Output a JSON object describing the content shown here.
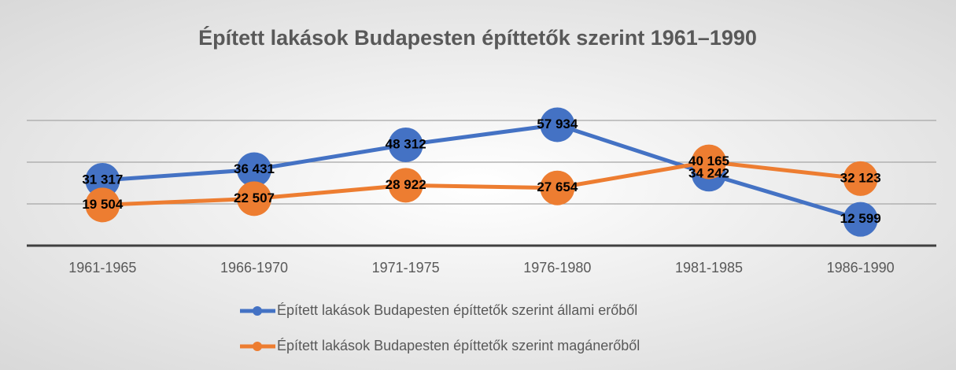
{
  "chart_data": {
    "type": "line",
    "title": "Épített lakások Budapesten építtetők szerint 1961–1990",
    "categories": [
      "1961-1965",
      "1966-1970",
      "1971-1975",
      "1976-1980",
      "1981-1985",
      "1986-1990"
    ],
    "series": [
      {
        "name": "Épített lakások Budapesten építtetők szerint állami erőből",
        "color": "#4472c4",
        "values": [
          31317,
          36431,
          48312,
          57934,
          34242,
          12599
        ],
        "value_labels": [
          "31 317",
          "36 431",
          "48 312",
          "57 934",
          "34 242",
          "12 599"
        ]
      },
      {
        "name": "Épített lakások Budapesten építtetők szerint magánerőből",
        "color": "#ed7d31",
        "values": [
          19504,
          22507,
          28922,
          27654,
          40165,
          32123
        ],
        "value_labels": [
          "19 504",
          "22 507",
          "28 922",
          "27 654",
          "40 165",
          "32 123"
        ]
      }
    ],
    "ylim": [
      0,
      60000
    ],
    "yticks": [
      0,
      20000,
      40000,
      60000
    ],
    "grid": true
  }
}
